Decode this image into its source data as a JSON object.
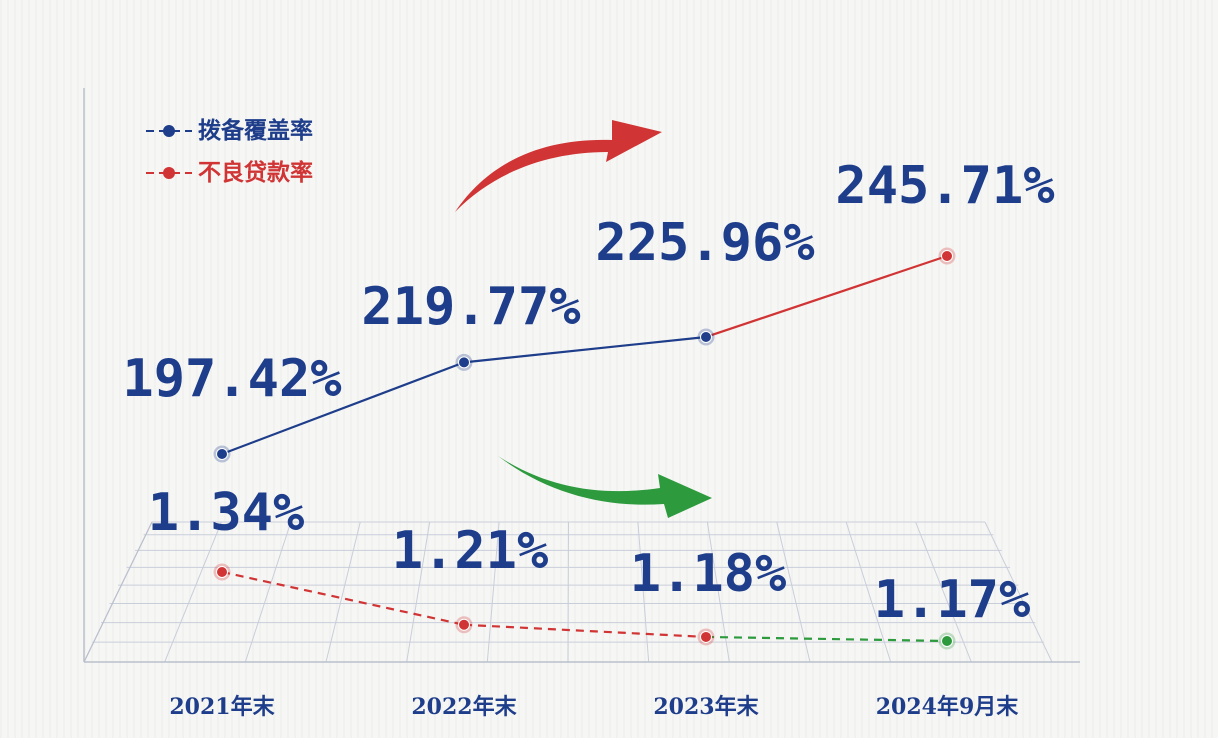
{
  "colors": {
    "blue": "#1e3d8a",
    "red": "#d03434",
    "green": "#2d9a3e",
    "grid": "#c9cedb",
    "value_text": "#1e3d8a"
  },
  "legend": [
    {
      "label": "拨备覆盖率",
      "color": "#1e3d8a"
    },
    {
      "label": "不良贷款率",
      "color": "#d03434"
    }
  ],
  "chart_data": {
    "type": "line",
    "categories": [
      "2021年末",
      "2022年末",
      "2023年末",
      "2024年9月末"
    ],
    "series": [
      {
        "name": "拨备覆盖率",
        "values": [
          197.42,
          219.77,
          225.96,
          245.71
        ],
        "labels": [
          "197.42%",
          "219.77%",
          "225.96%",
          "245.71%"
        ],
        "color": "#1e3d8a",
        "last_segment_color": "#d03434",
        "line_style": "solid"
      },
      {
        "name": "不良贷款率",
        "values": [
          1.34,
          1.21,
          1.18,
          1.17
        ],
        "labels": [
          "1.34%",
          "1.21%",
          "1.18%",
          "1.17%"
        ],
        "color": "#d03434",
        "last_segment_color": "#2d9a3e",
        "line_style": "dashed"
      }
    ],
    "annotations": [
      {
        "type": "arrow",
        "meaning": "上升",
        "color": "#d03434"
      },
      {
        "type": "arrow",
        "meaning": "下降",
        "color": "#2d9a3e"
      }
    ],
    "grid": true,
    "legend_position": "top-left"
  }
}
